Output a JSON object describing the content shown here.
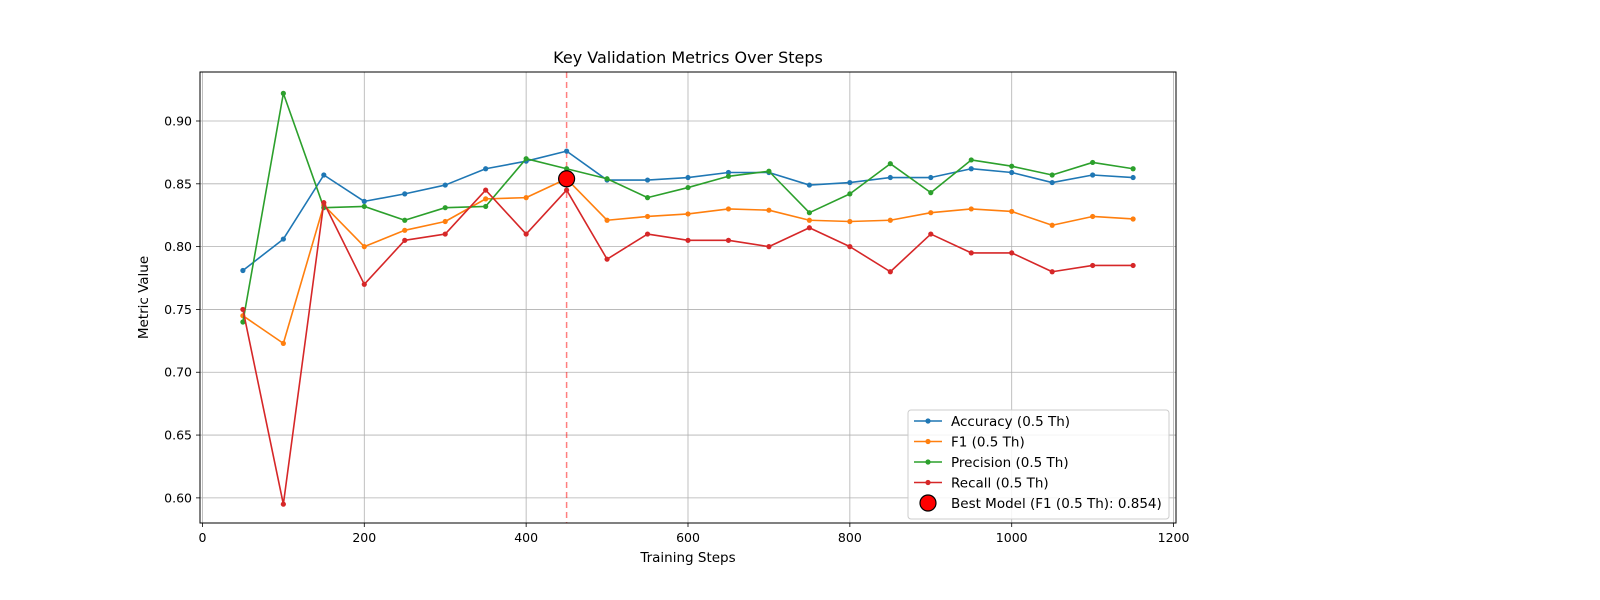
{
  "chart_data": {
    "type": "line",
    "title": "Key Validation Metrics Over Steps",
    "xlabel": "Training Steps",
    "ylabel": "Metric Value",
    "xlim": [
      -3,
      1203
    ],
    "ylim": [
      0.58,
      0.939
    ],
    "xticks": [
      0,
      200,
      400,
      600,
      800,
      1000,
      1200
    ],
    "yticks": [
      0.6,
      0.65,
      0.7,
      0.75,
      0.8,
      0.85,
      0.9
    ],
    "grid": true,
    "legend_position": "lower-right",
    "x": [
      50,
      100,
      150,
      200,
      250,
      300,
      350,
      400,
      450,
      500,
      550,
      600,
      650,
      700,
      750,
      800,
      850,
      900,
      950,
      1000,
      1050,
      1100,
      1150
    ],
    "series": [
      {
        "name": "Accuracy (0.5 Th)",
        "color": "#1f77b4",
        "values": [
          0.781,
          0.806,
          0.857,
          0.836,
          0.842,
          0.849,
          0.862,
          0.868,
          0.876,
          0.853,
          0.853,
          0.855,
          0.859,
          0.859,
          0.849,
          0.851,
          0.855,
          0.855,
          0.862,
          0.859,
          0.851,
          0.857,
          0.855
        ]
      },
      {
        "name": "F1 (0.5 Th)",
        "color": "#ff7f0e",
        "values": [
          0.745,
          0.723,
          0.833,
          0.8,
          0.813,
          0.82,
          0.838,
          0.839,
          0.854,
          0.821,
          0.824,
          0.826,
          0.83,
          0.829,
          0.821,
          0.82,
          0.821,
          0.827,
          0.83,
          0.828,
          0.817,
          0.824,
          0.822
        ]
      },
      {
        "name": "Precision (0.5 Th)",
        "color": "#2ca02c",
        "values": [
          0.74,
          0.922,
          0.831,
          0.832,
          0.821,
          0.831,
          0.832,
          0.87,
          0.862,
          0.854,
          0.839,
          0.847,
          0.856,
          0.86,
          0.827,
          0.842,
          0.866,
          0.843,
          0.869,
          0.864,
          0.857,
          0.867,
          0.862
        ]
      },
      {
        "name": "Recall (0.5 Th)",
        "color": "#d62728",
        "values": [
          0.75,
          0.595,
          0.835,
          0.77,
          0.805,
          0.81,
          0.845,
          0.81,
          0.845,
          0.79,
          0.81,
          0.805,
          0.805,
          0.8,
          0.815,
          0.8,
          0.78,
          0.81,
          0.795,
          0.795,
          0.78,
          0.785,
          0.785
        ]
      }
    ],
    "best_model": {
      "label": "Best Model (F1 (0.5 Th): 0.854)",
      "x": 450,
      "y": 0.854,
      "color": "#ff0000"
    }
  }
}
